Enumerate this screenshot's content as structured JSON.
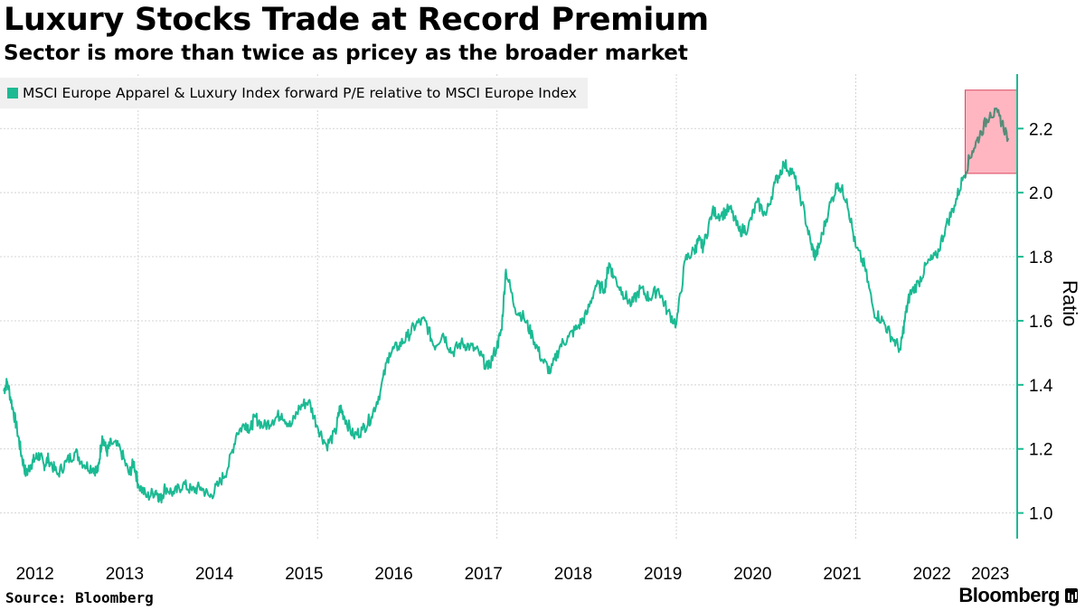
{
  "chart_data": {
    "type": "line",
    "title": "Luxury Stocks Trade at Record Premium",
    "subtitle": "Sector is more than twice as pricey as the broader market",
    "xlabel": "",
    "ylabel": "Ratio",
    "ylim": [
      0.92,
      2.37
    ],
    "yticks": [
      1.0,
      1.2,
      1.4,
      1.6,
      1.8,
      2.0,
      2.2
    ],
    "ytick_labels": [
      "1.0",
      "1.2",
      "1.4",
      "1.6",
      "1.8",
      "2.0",
      "2.2"
    ],
    "xlim": [
      2012.0,
      2023.3
    ],
    "xtick_labels": [
      "2012",
      "2013",
      "2014",
      "2015",
      "2016",
      "2017",
      "2018",
      "2019",
      "2020",
      "2021",
      "2022",
      "2023"
    ],
    "xtick_label_positions": [
      2012.35,
      2013.35,
      2014.35,
      2015.35,
      2016.35,
      2017.35,
      2018.35,
      2019.35,
      2020.35,
      2021.35,
      2022.35,
      2023.0
    ],
    "xgrid_years": [
      2013.5,
      2015.5,
      2017.5,
      2019.5,
      2021.5
    ],
    "legend": "top-left",
    "grid": true,
    "highlight": {
      "x_range": [
        2022.72,
        2023.3
      ],
      "y_range": [
        2.06,
        2.32
      ],
      "color": "#ffb6c1"
    },
    "series": [
      {
        "name": "MSCI Europe Apparel & Luxury Index forward P/E relative to MSCI Europe Index",
        "color": "#1bba93",
        "x": [
          2012.0,
          2012.04,
          2012.1,
          2012.15,
          2012.2,
          2012.25,
          2012.3,
          2012.35,
          2012.4,
          2012.45,
          2012.5,
          2012.6,
          2012.7,
          2012.8,
          2012.9,
          2013.0,
          2013.05,
          2013.1,
          2013.15,
          2013.2,
          2013.3,
          2013.4,
          2013.45,
          2013.5,
          2013.6,
          2013.7,
          2013.75,
          2013.8,
          2013.9,
          2014.0,
          2014.1,
          2014.2,
          2014.3,
          2014.4,
          2014.5,
          2014.6,
          2014.7,
          2014.75,
          2014.8,
          2014.9,
          2015.0,
          2015.1,
          2015.2,
          2015.3,
          2015.4,
          2015.5,
          2015.6,
          2015.7,
          2015.75,
          2015.8,
          2015.9,
          2016.0,
          2016.1,
          2016.2,
          2016.3,
          2016.4,
          2016.5,
          2016.6,
          2016.7,
          2016.8,
          2016.9,
          2017.0,
          2017.1,
          2017.2,
          2017.3,
          2017.4,
          2017.5,
          2017.55,
          2017.6,
          2017.7,
          2017.8,
          2017.9,
          2018.0,
          2018.1,
          2018.2,
          2018.3,
          2018.4,
          2018.5,
          2018.6,
          2018.7,
          2018.75,
          2018.8,
          2018.9,
          2019.0,
          2019.1,
          2019.2,
          2019.3,
          2019.4,
          2019.5,
          2019.6,
          2019.7,
          2019.75,
          2019.8,
          2019.9,
          2020.0,
          2020.1,
          2020.2,
          2020.3,
          2020.4,
          2020.5,
          2020.6,
          2020.7,
          2020.8,
          2020.9,
          2021.0,
          2021.05,
          2021.1,
          2021.2,
          2021.3,
          2021.4,
          2021.5,
          2021.6,
          2021.7,
          2021.8,
          2021.9,
          2022.0,
          2022.05,
          2022.1,
          2022.2,
          2022.3,
          2022.4,
          2022.5,
          2022.6,
          2022.7,
          2022.8,
          2022.9,
          2023.0,
          2023.1,
          2023.2
        ],
        "values": [
          1.38,
          1.41,
          1.33,
          1.26,
          1.18,
          1.12,
          1.15,
          1.17,
          1.18,
          1.15,
          1.17,
          1.12,
          1.16,
          1.19,
          1.15,
          1.14,
          1.13,
          1.24,
          1.19,
          1.22,
          1.2,
          1.12,
          1.16,
          1.09,
          1.05,
          1.07,
          1.04,
          1.08,
          1.06,
          1.09,
          1.07,
          1.08,
          1.05,
          1.09,
          1.14,
          1.25,
          1.28,
          1.26,
          1.3,
          1.27,
          1.29,
          1.31,
          1.27,
          1.33,
          1.35,
          1.27,
          1.21,
          1.25,
          1.33,
          1.3,
          1.24,
          1.26,
          1.3,
          1.38,
          1.5,
          1.52,
          1.55,
          1.59,
          1.6,
          1.52,
          1.56,
          1.5,
          1.53,
          1.52,
          1.5,
          1.45,
          1.52,
          1.57,
          1.76,
          1.64,
          1.61,
          1.55,
          1.48,
          1.44,
          1.52,
          1.55,
          1.58,
          1.62,
          1.71,
          1.7,
          1.78,
          1.74,
          1.69,
          1.65,
          1.7,
          1.67,
          1.7,
          1.63,
          1.59,
          1.79,
          1.82,
          1.85,
          1.83,
          1.94,
          1.93,
          1.95,
          1.88,
          1.89,
          1.97,
          1.93,
          2.03,
          2.09,
          2.06,
          1.97,
          1.84,
          1.8,
          1.84,
          1.95,
          2.03,
          1.98,
          1.83,
          1.77,
          1.63,
          1.6,
          1.55,
          1.51,
          1.61,
          1.68,
          1.72,
          1.78,
          1.8,
          1.89,
          1.96,
          2.05,
          2.13,
          2.19,
          2.25,
          2.24,
          2.17
        ]
      }
    ]
  },
  "legend_label": "MSCI Europe Apparel & Luxury Index forward P/E relative to MSCI Europe Index",
  "source": "Source: Bloomberg",
  "brand": "Bloomberg"
}
